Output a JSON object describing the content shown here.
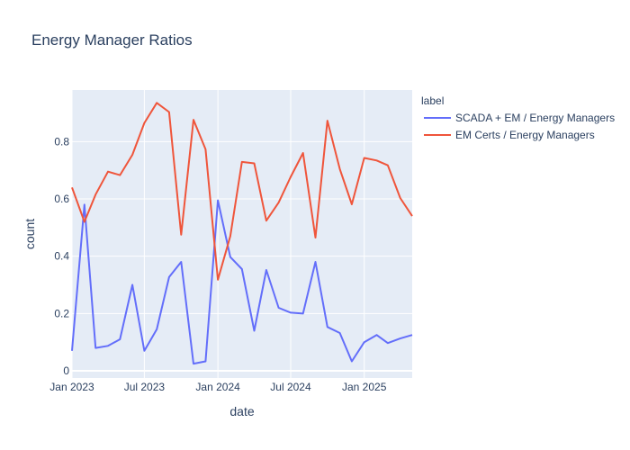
{
  "chart_data": {
    "type": "line",
    "title": "Energy Manager Ratios",
    "xlabel": "date",
    "ylabel": "count",
    "x_tick_labels": [
      "Jan 2023",
      "Jul 2023",
      "Jan 2024",
      "Jul 2024",
      "Jan 2025"
    ],
    "x_tick_dates": [
      "2023-01-01",
      "2023-07-01",
      "2024-01-01",
      "2024-07-01",
      "2025-01-01"
    ],
    "y_ticks": [
      0,
      0.2,
      0.4,
      0.6,
      0.8
    ],
    "y_tick_labels": [
      "0",
      "0.2",
      "0.4",
      "0.6",
      "0.8"
    ],
    "xlim": [
      "2023-01-01",
      "2025-05-01"
    ],
    "ylim": [
      -0.025,
      0.98
    ],
    "grid": true,
    "legend_title": "label",
    "legend_position": "right",
    "x": [
      "2023-01-01",
      "2023-02-01",
      "2023-03-01",
      "2023-04-01",
      "2023-05-01",
      "2023-06-01",
      "2023-07-01",
      "2023-08-01",
      "2023-09-01",
      "2023-10-01",
      "2023-11-01",
      "2023-12-01",
      "2024-01-01",
      "2024-02-01",
      "2024-03-01",
      "2024-04-01",
      "2024-05-01",
      "2024-06-01",
      "2024-07-01",
      "2024-08-01",
      "2024-09-01",
      "2024-10-01",
      "2024-11-01",
      "2024-12-01",
      "2025-01-01",
      "2025-02-01",
      "2025-03-01",
      "2025-04-01",
      "2025-05-01"
    ],
    "series": [
      {
        "name": "SCADA + EM / Energy Managers",
        "color": "#636efa",
        "values": [
          0.07,
          0.58,
          0.08,
          0.087,
          0.11,
          0.3,
          0.07,
          0.145,
          0.327,
          0.38,
          0.025,
          0.033,
          0.595,
          0.397,
          0.355,
          0.14,
          0.352,
          0.22,
          0.203,
          0.2,
          0.38,
          0.153,
          0.132,
          0.033,
          0.1,
          0.125,
          0.097,
          0.113,
          0.125
        ]
      },
      {
        "name": "EM Certs / Energy Managers",
        "color": "#ef553b",
        "values": [
          0.64,
          0.52,
          0.615,
          0.695,
          0.683,
          0.754,
          0.865,
          0.935,
          0.903,
          0.475,
          0.876,
          0.773,
          0.318,
          0.47,
          0.729,
          0.724,
          0.524,
          0.587,
          0.677,
          0.76,
          0.465,
          0.873,
          0.704,
          0.581,
          0.743,
          0.734,
          0.717,
          0.603,
          0.54
        ]
      }
    ]
  }
}
